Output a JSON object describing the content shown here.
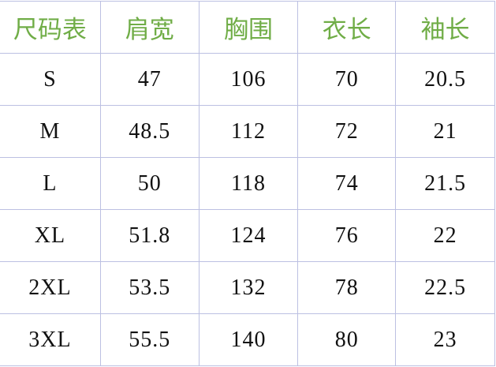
{
  "accent_color": "#70ad47",
  "headers": [
    "尺码表",
    "肩宽",
    "胸围",
    "衣长",
    "袖长"
  ],
  "rows": [
    [
      "S",
      "47",
      "106",
      "70",
      "20.5"
    ],
    [
      "M",
      "48.5",
      "112",
      "72",
      "21"
    ],
    [
      "L",
      "50",
      "118",
      "74",
      "21.5"
    ],
    [
      "XL",
      "51.8",
      "124",
      "76",
      "22"
    ],
    [
      "2XL",
      "53.5",
      "132",
      "78",
      "22.5"
    ],
    [
      "3XL",
      "55.5",
      "140",
      "80",
      "23"
    ]
  ]
}
